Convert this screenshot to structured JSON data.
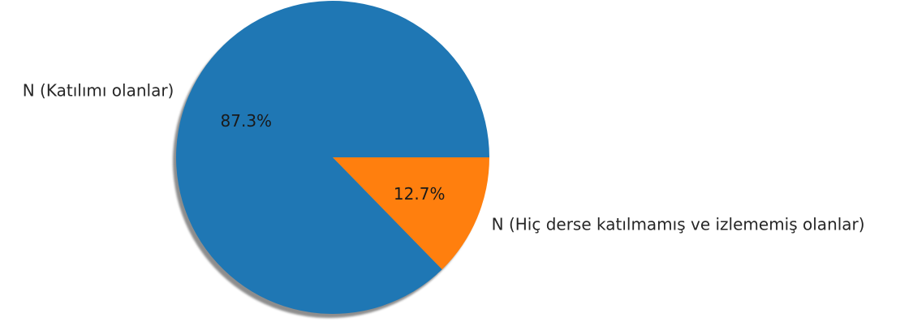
{
  "chart_data": {
    "type": "pie",
    "title": "",
    "startangle": 0,
    "shadow": true,
    "slices": [
      {
        "label": "N (Katılımı olanlar)",
        "value": 87.3,
        "pct_label": "87.3%",
        "color": "#1f77b4"
      },
      {
        "label": "N (Hiç derse katılmamış ve izlememiş olanlar)",
        "value": 12.7,
        "pct_label": "12.7%",
        "color": "#ff7f0e"
      }
    ]
  }
}
